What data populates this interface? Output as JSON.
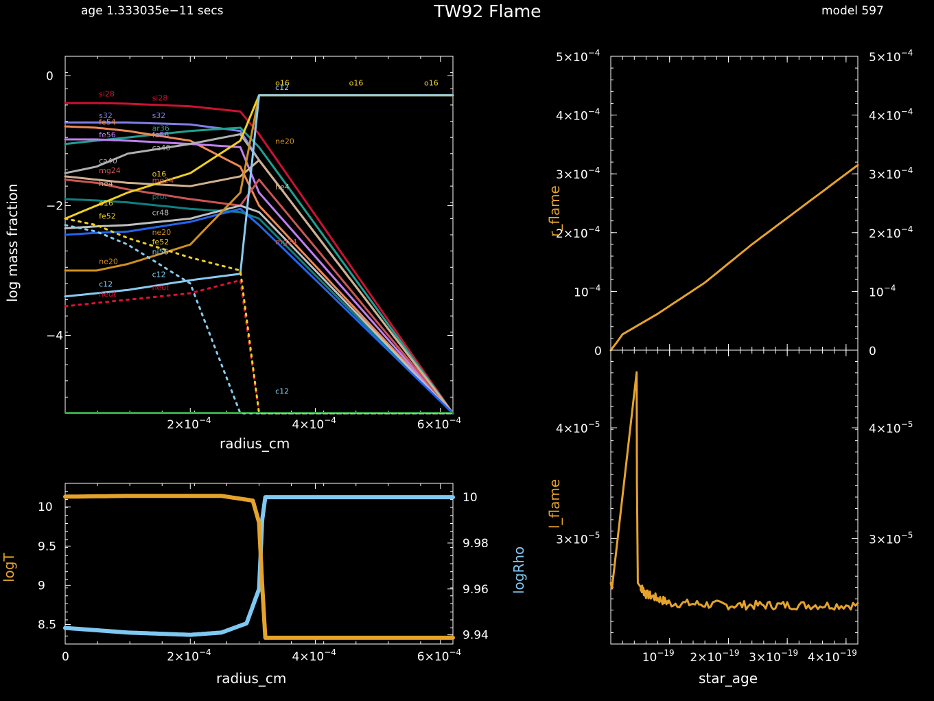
{
  "header": {
    "age": "age 1.333035e−11 secs",
    "title": "TW92  Flame",
    "model": "model 597"
  },
  "colors": {
    "gold": "#e5a32b",
    "lightblue": "#7fc8f2",
    "axis": "#ffffff"
  },
  "chart_data": [
    {
      "id": "abundance",
      "type": "line",
      "xlabel": "radius_cm",
      "ylabel": "log mass fraction",
      "xlim": [
        0,
        0.00062
      ],
      "ylim": [
        -5.2,
        0.3
      ],
      "x_ticks": [
        {
          "v": 0.0002,
          "label": "2×10",
          "exp": "−4"
        },
        {
          "v": 0.0004,
          "label": "4×10",
          "exp": "−4"
        },
        {
          "v": 0.0006,
          "label": "6×10",
          "exp": "−4"
        }
      ],
      "y_ticks": [
        {
          "v": 0,
          "label": "0"
        },
        {
          "v": -2,
          "label": "−2"
        },
        {
          "v": -4,
          "label": "−4"
        }
      ],
      "series": [
        {
          "name": "si28",
          "color": "#cc1133",
          "dash": false,
          "values": [
            -0.42,
            -0.42,
            -0.43,
            -0.47,
            -0.55,
            -0.9,
            -5.2
          ]
        },
        {
          "name": "s32",
          "color": "#8080e8",
          "dash": false,
          "values": [
            -0.72,
            -0.72,
            -0.72,
            -0.75,
            -0.85,
            -1.3,
            -5.2
          ]
        },
        {
          "name": "ar36",
          "color": "#20a090",
          "dash": false,
          "values": [
            -1.05,
            -1.0,
            -0.95,
            -0.85,
            -0.8,
            -1.1,
            -5.2
          ]
        },
        {
          "name": "fe54",
          "color": "#ee8855",
          "dash": false,
          "values": [
            -0.78,
            -0.8,
            -0.85,
            -1.0,
            -1.4,
            -2.0,
            -5.2
          ]
        },
        {
          "name": "fe56",
          "color": "#c080f0",
          "dash": false,
          "values": [
            -0.98,
            -0.98,
            -1.0,
            -1.05,
            -1.1,
            -1.8,
            -5.2
          ]
        },
        {
          "name": "ca40",
          "color": "#b0b0b0",
          "dash": false,
          "values": [
            -1.5,
            -1.4,
            -1.2,
            -1.05,
            -0.9,
            -1.3,
            -5.2
          ]
        },
        {
          "name": "mg24",
          "color": "#cc5555",
          "dash": false,
          "values": [
            -1.6,
            -1.65,
            -1.75,
            -1.9,
            -2.0,
            -1.6,
            -5.2
          ]
        },
        {
          "name": "he4",
          "color": "#d0b090",
          "dash": false,
          "values": [
            -1.55,
            -1.6,
            -1.65,
            -1.7,
            -1.55,
            -1.3,
            -5.2
          ]
        },
        {
          "name": "prot",
          "color": "#108080",
          "dash": false,
          "values": [
            -1.9,
            -1.92,
            -1.95,
            -2.05,
            -2.1,
            -2.2,
            -5.2
          ]
        },
        {
          "name": "o16",
          "color": "#f0d020",
          "dash": false,
          "values": [
            -2.2,
            -2.0,
            -1.8,
            -1.5,
            -1.0,
            -0.3,
            -0.3
          ]
        },
        {
          "name": "cr48",
          "color": "#c0c0c0",
          "dash": false,
          "values": [
            -2.35,
            -2.32,
            -2.3,
            -2.2,
            -2.0,
            -2.1,
            -5.2
          ]
        },
        {
          "name": "ni56",
          "color": "#2266ee",
          "dash": false,
          "values": [
            -2.45,
            -2.42,
            -2.4,
            -2.25,
            -2.05,
            -2.3,
            -5.2
          ]
        },
        {
          "name": "ne20",
          "color": "#d09020",
          "dash": false,
          "values": [
            -3.0,
            -3.0,
            -2.9,
            -2.6,
            -1.8,
            -0.3,
            -0.3
          ]
        },
        {
          "name": "c12",
          "color": "#88ccf0",
          "dash": false,
          "values": [
            -3.4,
            -3.35,
            -3.3,
            -3.15,
            -3.05,
            -0.3,
            -0.3
          ]
        },
        {
          "name": "neut",
          "color": "#dd1133",
          "dash": true,
          "values": [
            -3.55,
            -3.5,
            -3.45,
            -3.35,
            -3.15,
            -5.2,
            -5.2
          ]
        },
        {
          "name": "fe52",
          "color": "#f0d020",
          "dash": true,
          "values": [
            -2.2,
            -2.3,
            -2.5,
            -2.8,
            -3.0,
            -5.2,
            -5.2
          ]
        },
        {
          "name": "ni56-dot",
          "color": "#88ccf0",
          "dash": true,
          "values": [
            -2.3,
            -2.4,
            -2.6,
            -3.2,
            -5.2,
            -5.2,
            -5.2
          ]
        }
      ],
      "x": [
        0,
        5e-05,
        0.0001,
        0.0002,
        0.00028,
        0.00031,
        0.00062
      ],
      "labels": [
        {
          "t": "si28",
          "c": "#cc1133",
          "x": 1e-05,
          "y": -0.32
        },
        {
          "t": "si28",
          "c": "#cc1133",
          "x": 9.5e-05,
          "y": -0.38
        },
        {
          "t": "s32",
          "c": "#8080e8",
          "x": 9.5e-05,
          "y": -0.65
        },
        {
          "t": "ar36",
          "c": "#20a090",
          "x": 9.5e-05,
          "y": -0.85
        },
        {
          "t": "fe56",
          "c": "#c080f0",
          "x": 9.5e-05,
          "y": -0.95
        },
        {
          "t": "ca40",
          "c": "#b0b0b0",
          "x": 9.5e-05,
          "y": -1.15
        },
        {
          "t": "o16",
          "c": "#f0d020",
          "x": 9.5e-05,
          "y": -1.55
        },
        {
          "t": "mg24",
          "c": "#cc5555",
          "x": 9.5e-05,
          "y": -1.65
        },
        {
          "t": "prot",
          "c": "#108080",
          "x": 9.5e-05,
          "y": -1.9
        },
        {
          "t": "cr48",
          "c": "#c0c0c0",
          "x": 9.5e-05,
          "y": -2.15
        },
        {
          "t": "ne20",
          "c": "#d09020",
          "x": 9.5e-05,
          "y": -2.45
        },
        {
          "t": "fe52",
          "c": "#f0d020",
          "x": 9.5e-05,
          "y": -2.6
        },
        {
          "t": "ni56",
          "c": "#88ccf0",
          "x": 9.5e-05,
          "y": -2.75
        },
        {
          "t": "c12",
          "c": "#88ccf0",
          "x": 9.5e-05,
          "y": -3.1
        },
        {
          "t": "neut",
          "c": "#dd1133",
          "x": 9.5e-05,
          "y": -3.3
        },
        {
          "t": "s32",
          "c": "#8080e8",
          "x": 1e-05,
          "y": -0.65
        },
        {
          "t": "fe54",
          "c": "#ee8855",
          "x": 1e-05,
          "y": -0.75
        },
        {
          "t": "fe56",
          "c": "#c080f0",
          "x": 1e-05,
          "y": -0.95
        },
        {
          "t": "ca40",
          "c": "#b0b0b0",
          "x": 1e-05,
          "y": -1.35
        },
        {
          "t": "mg24",
          "c": "#cc5555",
          "x": 1e-05,
          "y": -1.5
        },
        {
          "t": "he4",
          "c": "#d0b090",
          "x": 1e-05,
          "y": -1.7
        },
        {
          "t": "o16",
          "c": "#f0d020",
          "x": 1e-05,
          "y": -2.0
        },
        {
          "t": "fe52",
          "c": "#f0d020",
          "x": 1e-05,
          "y": -2.2
        },
        {
          "t": "ne20",
          "c": "#d09020",
          "x": 1e-05,
          "y": -2.9
        },
        {
          "t": "c12",
          "c": "#88ccf0",
          "x": 1e-05,
          "y": -3.25
        },
        {
          "t": "neut",
          "c": "#dd1133",
          "x": 1e-05,
          "y": -3.4
        },
        {
          "t": "o16",
          "c": "#f0d020",
          "x": 0.000292,
          "y": -0.15
        },
        {
          "t": "c12",
          "c": "#88ccf0",
          "x": 0.000292,
          "y": -0.22
        },
        {
          "t": "o16",
          "c": "#f0d020",
          "x": 0.00041,
          "y": -0.15
        },
        {
          "t": "o16",
          "c": "#f0d020",
          "x": 0.00053,
          "y": -0.15
        },
        {
          "t": "ne20",
          "c": "#d09020",
          "x": 0.000292,
          "y": -1.05
        },
        {
          "t": "he4",
          "c": "#d0b090",
          "x": 0.000292,
          "y": -1.75
        },
        {
          "t": "mg24",
          "c": "#cc5555",
          "x": 0.000292,
          "y": -2.6
        },
        {
          "t": "c12",
          "c": "#88ccf0",
          "x": 0.000292,
          "y": -4.9
        }
      ]
    },
    {
      "id": "logT_logRho",
      "type": "line",
      "xlabel": "radius_cm",
      "ylabel": "logT",
      "ylabel_right": "logRho",
      "xlim": [
        0,
        0.00062
      ],
      "ylim": [
        8.25,
        10.3
      ],
      "ylim_right": [
        9.936,
        10.006
      ],
      "x_ticks": [
        {
          "v": 0,
          "label": "0",
          "exp": ""
        },
        {
          "v": 0.0002,
          "label": "2×10",
          "exp": "−4"
        },
        {
          "v": 0.0004,
          "label": "4×10",
          "exp": "−4"
        },
        {
          "v": 0.0006,
          "label": "6×10",
          "exp": "−4"
        }
      ],
      "y_ticks": [
        {
          "v": 8.5,
          "label": "8.5"
        },
        {
          "v": 9,
          "label": "9"
        },
        {
          "v": 9.5,
          "label": "9.5"
        },
        {
          "v": 10,
          "label": "10"
        }
      ],
      "y_ticks_right": [
        {
          "v": 9.94,
          "label": "9.94"
        },
        {
          "v": 9.96,
          "label": "9.96"
        },
        {
          "v": 9.98,
          "label": "9.98"
        },
        {
          "v": 10,
          "label": "10"
        }
      ],
      "series": [
        {
          "name": "logT",
          "axis": "left",
          "x": [
            0,
            0.0001,
            0.00025,
            0.0003,
            0.00031,
            0.000315,
            0.00032,
            0.00062
          ],
          "values": [
            10.13,
            10.14,
            10.14,
            10.08,
            9.8,
            9.0,
            8.33,
            8.33
          ]
        },
        {
          "name": "logRho",
          "axis": "right",
          "x": [
            0,
            0.0001,
            0.0002,
            0.00025,
            0.00029,
            0.00031,
            0.000315,
            0.00032,
            0.00062
          ],
          "values": [
            9.943,
            9.941,
            9.94,
            9.941,
            9.945,
            9.96,
            9.99,
            10.0,
            10.0
          ]
        }
      ]
    },
    {
      "id": "r_flame",
      "type": "line",
      "xlabel": "",
      "ylabel": "r_flame",
      "xlim": [
        0,
        4.2e-19
      ],
      "ylim": [
        0,
        0.0005
      ],
      "y_ticks": [
        {
          "v": 0,
          "label": "0",
          "exp": ""
        },
        {
          "v": 0.0001,
          "label": "10",
          "exp": "−4"
        },
        {
          "v": 0.0002,
          "label": "2×10",
          "exp": "−4"
        },
        {
          "v": 0.0003,
          "label": "3×10",
          "exp": "−4"
        },
        {
          "v": 0.0004,
          "label": "4×10",
          "exp": "−4"
        },
        {
          "v": 0.0005,
          "label": "5×10",
          "exp": "−4"
        }
      ],
      "series": [
        {
          "name": "r_flame",
          "x": [
            0,
            1e-20,
            1.5e-20,
            2e-20,
            8e-20,
            1.6e-19,
            2.4e-19,
            3.2e-19,
            4.2e-19
          ],
          "values": [
            0,
            1.3e-05,
            2e-05,
            2.7e-05,
            6.2e-05,
            0.000115,
            0.00018,
            0.00024,
            0.000315
          ]
        }
      ]
    },
    {
      "id": "l_flame",
      "type": "line",
      "xlabel": "star_age",
      "ylabel": "l_flame",
      "xlim": [
        0,
        4.2e-19
      ],
      "ylim": [
        2.05e-05,
        4.7e-05
      ],
      "x_ticks": [
        {
          "v": 1e-19,
          "label": "10",
          "exp": "−19"
        },
        {
          "v": 2e-19,
          "label": "2×10",
          "exp": "−19"
        },
        {
          "v": 3e-19,
          "label": "3×10",
          "exp": "−19"
        },
        {
          "v": 4e-19,
          "label": "4×10",
          "exp": "−19"
        }
      ],
      "y_ticks": [
        {
          "v": 3e-05,
          "label": "3×10",
          "exp": "−5"
        },
        {
          "v": 4e-05,
          "label": "4×10",
          "exp": "−5"
        }
      ],
      "series": [
        {
          "name": "l_flame",
          "x": [
            0,
            2e-21,
            4.4e-20,
            4.45e-20,
            4.6e-20,
            6e-20,
            1e-19,
            2e-19,
            3e-19,
            4.2e-19
          ],
          "values": [
            2.6e-05,
            2.55e-05,
            4.5e-05,
            3.5e-05,
            2.6e-05,
            2.5e-05,
            2.42e-05,
            2.4e-05,
            2.4e-05,
            2.4e-05
          ]
        }
      ]
    }
  ]
}
